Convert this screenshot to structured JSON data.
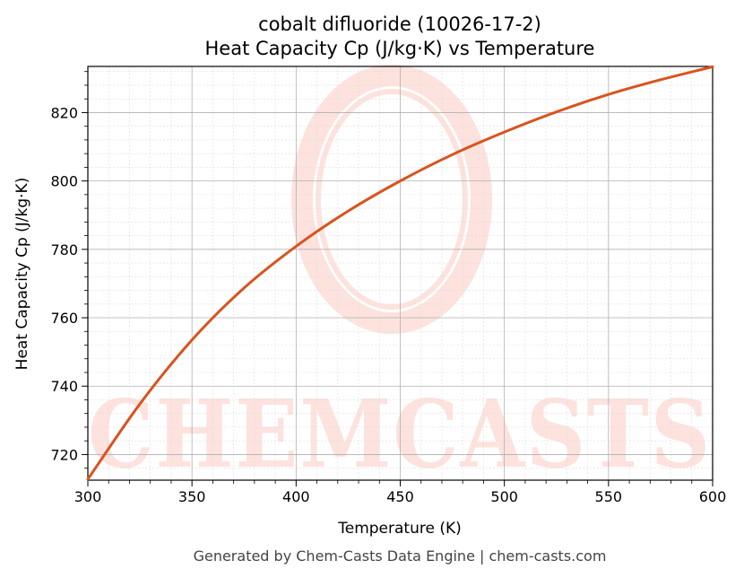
{
  "chart_data": {
    "type": "line",
    "title": "cobalt difluoride (10026-17-2)",
    "subtitle": "Heat Capacity Cp (J/kg·K) vs Temperature",
    "xlabel": "Temperature (K)",
    "ylabel": "Heat Capacity Cp (J/kg·K)",
    "xlim": [
      300,
      600
    ],
    "ylim": [
      712.5,
      833.5
    ],
    "xticks": [
      300,
      350,
      400,
      450,
      500,
      550,
      600
    ],
    "yticks": [
      720,
      740,
      760,
      780,
      800,
      820
    ],
    "grid": true,
    "legend": "none",
    "series": [
      {
        "color": "#d9531e",
        "x": [
          300,
          325,
          350,
          375,
          400,
          425,
          450,
          475,
          500,
          525,
          550,
          575,
          600
        ],
        "values": [
          712.8,
          734.8,
          753.5,
          768.7,
          780.9,
          791.2,
          800.0,
          807.7,
          814.3,
          820.2,
          825.3,
          829.6,
          833.4
        ]
      }
    ]
  },
  "watermark": {
    "text": "CHEMCASTS"
  },
  "footer": {
    "text": "Generated by Chem-Casts Data Engine | chem-casts.com"
  },
  "colors": {
    "line": "#d9531e",
    "watermark": "#fde2dd",
    "grid_major": "#b0b0b0",
    "grid_minor": "#dddddd"
  }
}
